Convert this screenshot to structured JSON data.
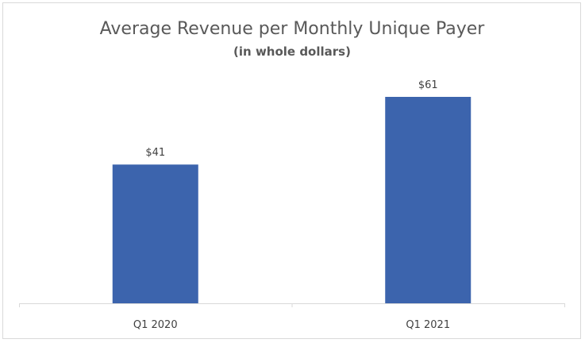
{
  "chart_data": {
    "type": "bar",
    "title": "Average Revenue per Monthly Unique Payer",
    "subtitle": "(in whole dollars)",
    "categories": [
      "Q1 2020",
      "Q1 2021"
    ],
    "values": [
      41,
      61
    ],
    "data_labels": [
      "$41",
      "$61"
    ],
    "xlabel": "",
    "ylabel": "",
    "ylim": [
      0,
      70
    ],
    "grid": false,
    "legend": "none",
    "bar_color": "#3c64ad",
    "axis_color": "#d9d9d9"
  }
}
